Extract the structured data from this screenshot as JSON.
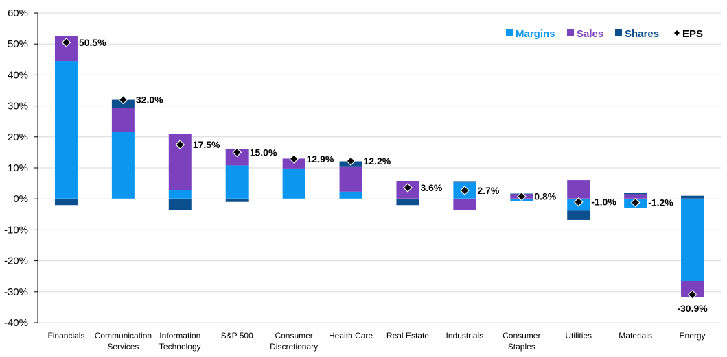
{
  "chart_data": {
    "type": "bar",
    "stacked": true,
    "categories": [
      [
        "Financials"
      ],
      [
        "Communication",
        "Services"
      ],
      [
        "Information",
        "Technology"
      ],
      [
        "S&P 500"
      ],
      [
        "Consumer",
        "Discretionary"
      ],
      [
        "Health Care"
      ],
      [
        "Real Estate"
      ],
      [
        "Industrials"
      ],
      [
        "Consumer",
        "Staples"
      ],
      [
        "Utilities"
      ],
      [
        "Materials"
      ],
      [
        "Energy"
      ]
    ],
    "series": [
      {
        "name": "Margins",
        "color": "#0B96F0",
        "values": [
          44.5,
          21.5,
          2.8,
          10.8,
          9.8,
          2.3,
          0.0,
          5.3,
          -0.8,
          -3.8,
          -3.0,
          -26.5
        ]
      },
      {
        "name": "Sales",
        "color": "#7C42BE",
        "values": [
          8.0,
          7.8,
          18.2,
          5.2,
          3.2,
          8.2,
          5.8,
          -3.5,
          1.5,
          6.0,
          1.5,
          -5.3
        ]
      },
      {
        "name": "Shares",
        "color": "#0B4F8E",
        "values": [
          -2.0,
          2.7,
          -3.5,
          -1.0,
          0.0,
          1.6,
          -2.0,
          0.4,
          0.2,
          -3.0,
          0.4,
          1.0
        ]
      }
    ],
    "eps": {
      "name": "EPS",
      "values": [
        50.5,
        32.0,
        17.5,
        15.0,
        12.9,
        12.2,
        3.6,
        2.7,
        0.8,
        -1.0,
        -1.2,
        -30.9
      ],
      "labels": [
        "50.5%",
        "32.0%",
        "17.5%",
        "15.0%",
        "12.9%",
        "12.2%",
        "3.6%",
        "2.7%",
        "0.8%",
        "-1.0%",
        "-1.2%",
        "-30.9%"
      ]
    },
    "yticks": [
      "60%",
      "50%",
      "40%",
      "30%",
      "20%",
      "10%",
      "0%",
      "-10%",
      "-20%",
      "-30%",
      "-40%"
    ],
    "ylim": [
      -40,
      60
    ],
    "grid": true,
    "legend_position": "top-right"
  }
}
